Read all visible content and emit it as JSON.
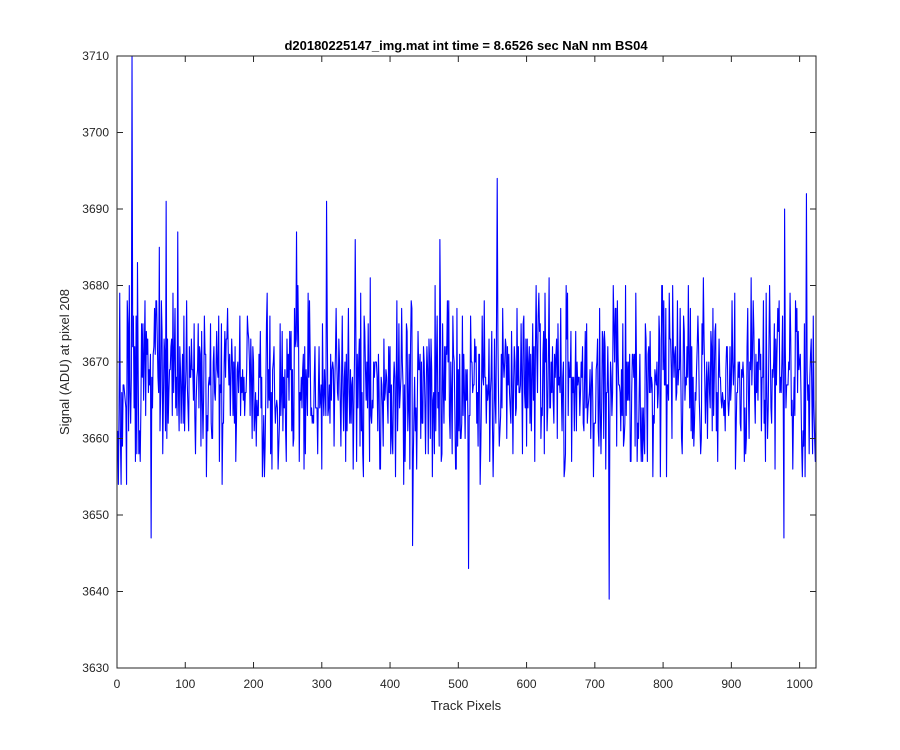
{
  "chart_data": {
    "type": "line",
    "title": "d20180225147_img.mat int time = 8.6526 sec  NaN nm BS04",
    "xlabel": "Track Pixels",
    "ylabel": "Signal (ADU) at pixel 208",
    "xlim": [
      0,
      1024
    ],
    "ylim": [
      3630,
      3710
    ],
    "xticks": [
      0,
      100,
      200,
      300,
      400,
      500,
      600,
      700,
      800,
      900,
      1000
    ],
    "yticks": [
      3630,
      3640,
      3650,
      3660,
      3670,
      3680,
      3690,
      3700,
      3710
    ],
    "grid": false,
    "legend": "none",
    "series": [
      {
        "color": "#0000ff",
        "x_start": 1,
        "x_step": 1,
        "n_points": 1024,
        "baseline": 3667.5,
        "typical_range": [
          3654,
          3681
        ],
        "y_min": 3639,
        "y_max": 3710,
        "notable_points": [
          {
            "x": 2,
            "y": 3654
          },
          {
            "x": 6,
            "y": 3654
          },
          {
            "x": 22,
            "y": 3710
          },
          {
            "x": 30,
            "y": 3683
          },
          {
            "x": 50,
            "y": 3647
          },
          {
            "x": 62,
            "y": 3685
          },
          {
            "x": 72,
            "y": 3691
          },
          {
            "x": 89,
            "y": 3687
          },
          {
            "x": 263,
            "y": 3687
          },
          {
            "x": 307,
            "y": 3691
          },
          {
            "x": 349,
            "y": 3686
          },
          {
            "x": 433,
            "y": 3646
          },
          {
            "x": 473,
            "y": 3686
          },
          {
            "x": 515,
            "y": 3643
          },
          {
            "x": 557,
            "y": 3694
          },
          {
            "x": 721,
            "y": 3639
          },
          {
            "x": 977,
            "y": 3647
          },
          {
            "x": 978,
            "y": 3690
          },
          {
            "x": 1010,
            "y": 3692
          }
        ]
      }
    ]
  }
}
